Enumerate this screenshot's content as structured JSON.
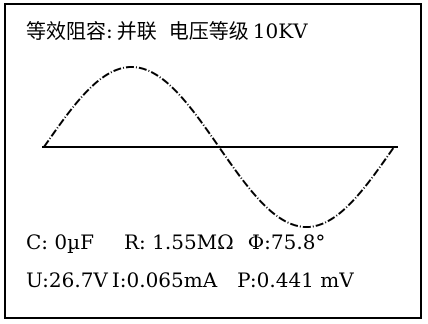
{
  "header": {
    "equivalent_capacitance_label": "等效阻容:",
    "connection_mode": "并联",
    "voltage_level_label": "电压等级",
    "voltage_level_value": "10KV"
  },
  "readings": {
    "capacitance": "C: 0µF",
    "resistance": "R: 1.55MΩ",
    "phase": "Φ:75.8°",
    "voltage": "U:26.7V",
    "current": "I:0.065mA",
    "power": "P:0.441 mV"
  },
  "waveform": {
    "type": "sine",
    "cycles": 1,
    "line_color": "#000000",
    "baseline_color": "#000000",
    "stroke_style": "dashed"
  }
}
